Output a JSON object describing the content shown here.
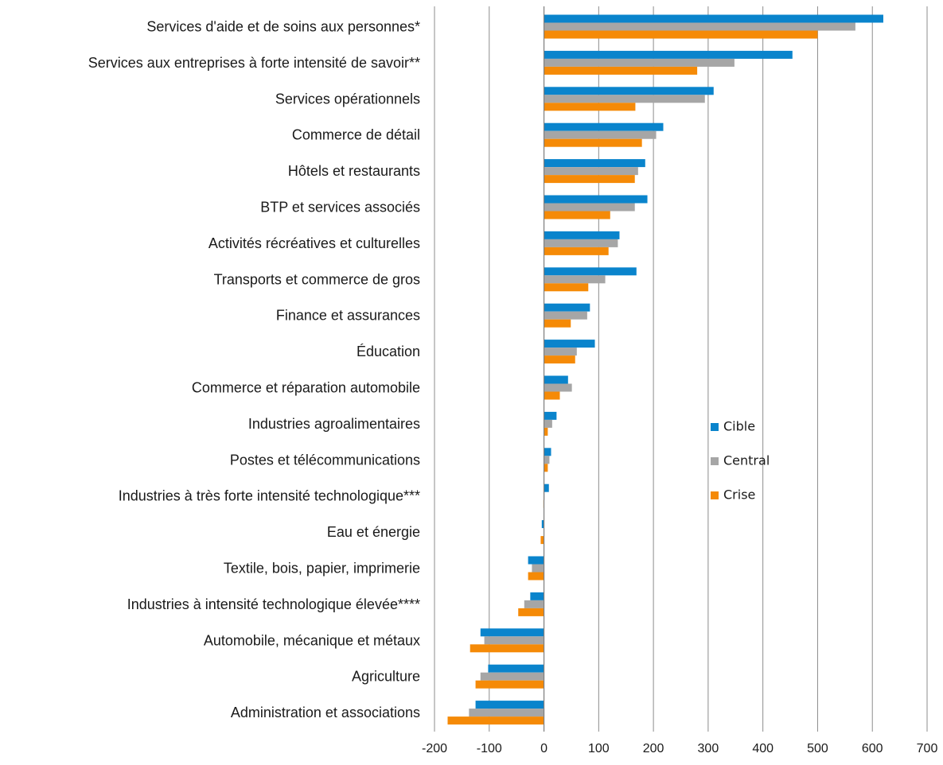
{
  "chart_data": {
    "type": "hbar",
    "categories": [
      "Services d'aide et de soins aux personnes*",
      "Services aux entreprises à forte intensité de savoir**",
      "Services opérationnels",
      "Commerce de détail",
      "Hôtels et restaurants",
      "BTP et services associés",
      "Activités récréatives et culturelles",
      "Transports et commerce de gros",
      "Finance et assurances",
      "Éducation",
      "Commerce et réparation automobile",
      "Industries agroalimentaires",
      "Postes et télécommunications",
      "Industries à très forte intensité technologique***",
      "Eau et énergie",
      "Textile, bois, papier, imprimerie",
      "Industries à intensité technologique élevée****",
      "Automobile, mécanique et métaux",
      "Agriculture",
      "Administration et associations"
    ],
    "series": [
      {
        "name": "Cible",
        "color": "#0a84cc",
        "values": [
          620,
          454,
          310,
          218,
          185,
          189,
          138,
          169,
          84,
          93,
          44,
          23,
          13,
          9,
          -4,
          -29,
          -25,
          -116,
          -102,
          -125
        ]
      },
      {
        "name": "Central",
        "color": "#a6a6a6",
        "values": [
          569,
          348,
          294,
          205,
          172,
          166,
          135,
          112,
          79,
          60,
          51,
          15,
          10,
          1,
          0,
          -22,
          -36,
          -109,
          -116,
          -137
        ]
      },
      {
        "name": "Crise",
        "color": "#f58a07",
        "values": [
          500,
          280,
          167,
          179,
          166,
          121,
          118,
          81,
          49,
          57,
          29,
          7,
          7,
          -1,
          -6,
          -29,
          -47,
          -135,
          -125,
          -176
        ]
      }
    ],
    "xlim": [
      -200,
      700
    ],
    "xticks": [
      -200,
      -100,
      0,
      100,
      200,
      300,
      400,
      500,
      600,
      700
    ],
    "grid": true,
    "legend_position": "right"
  }
}
